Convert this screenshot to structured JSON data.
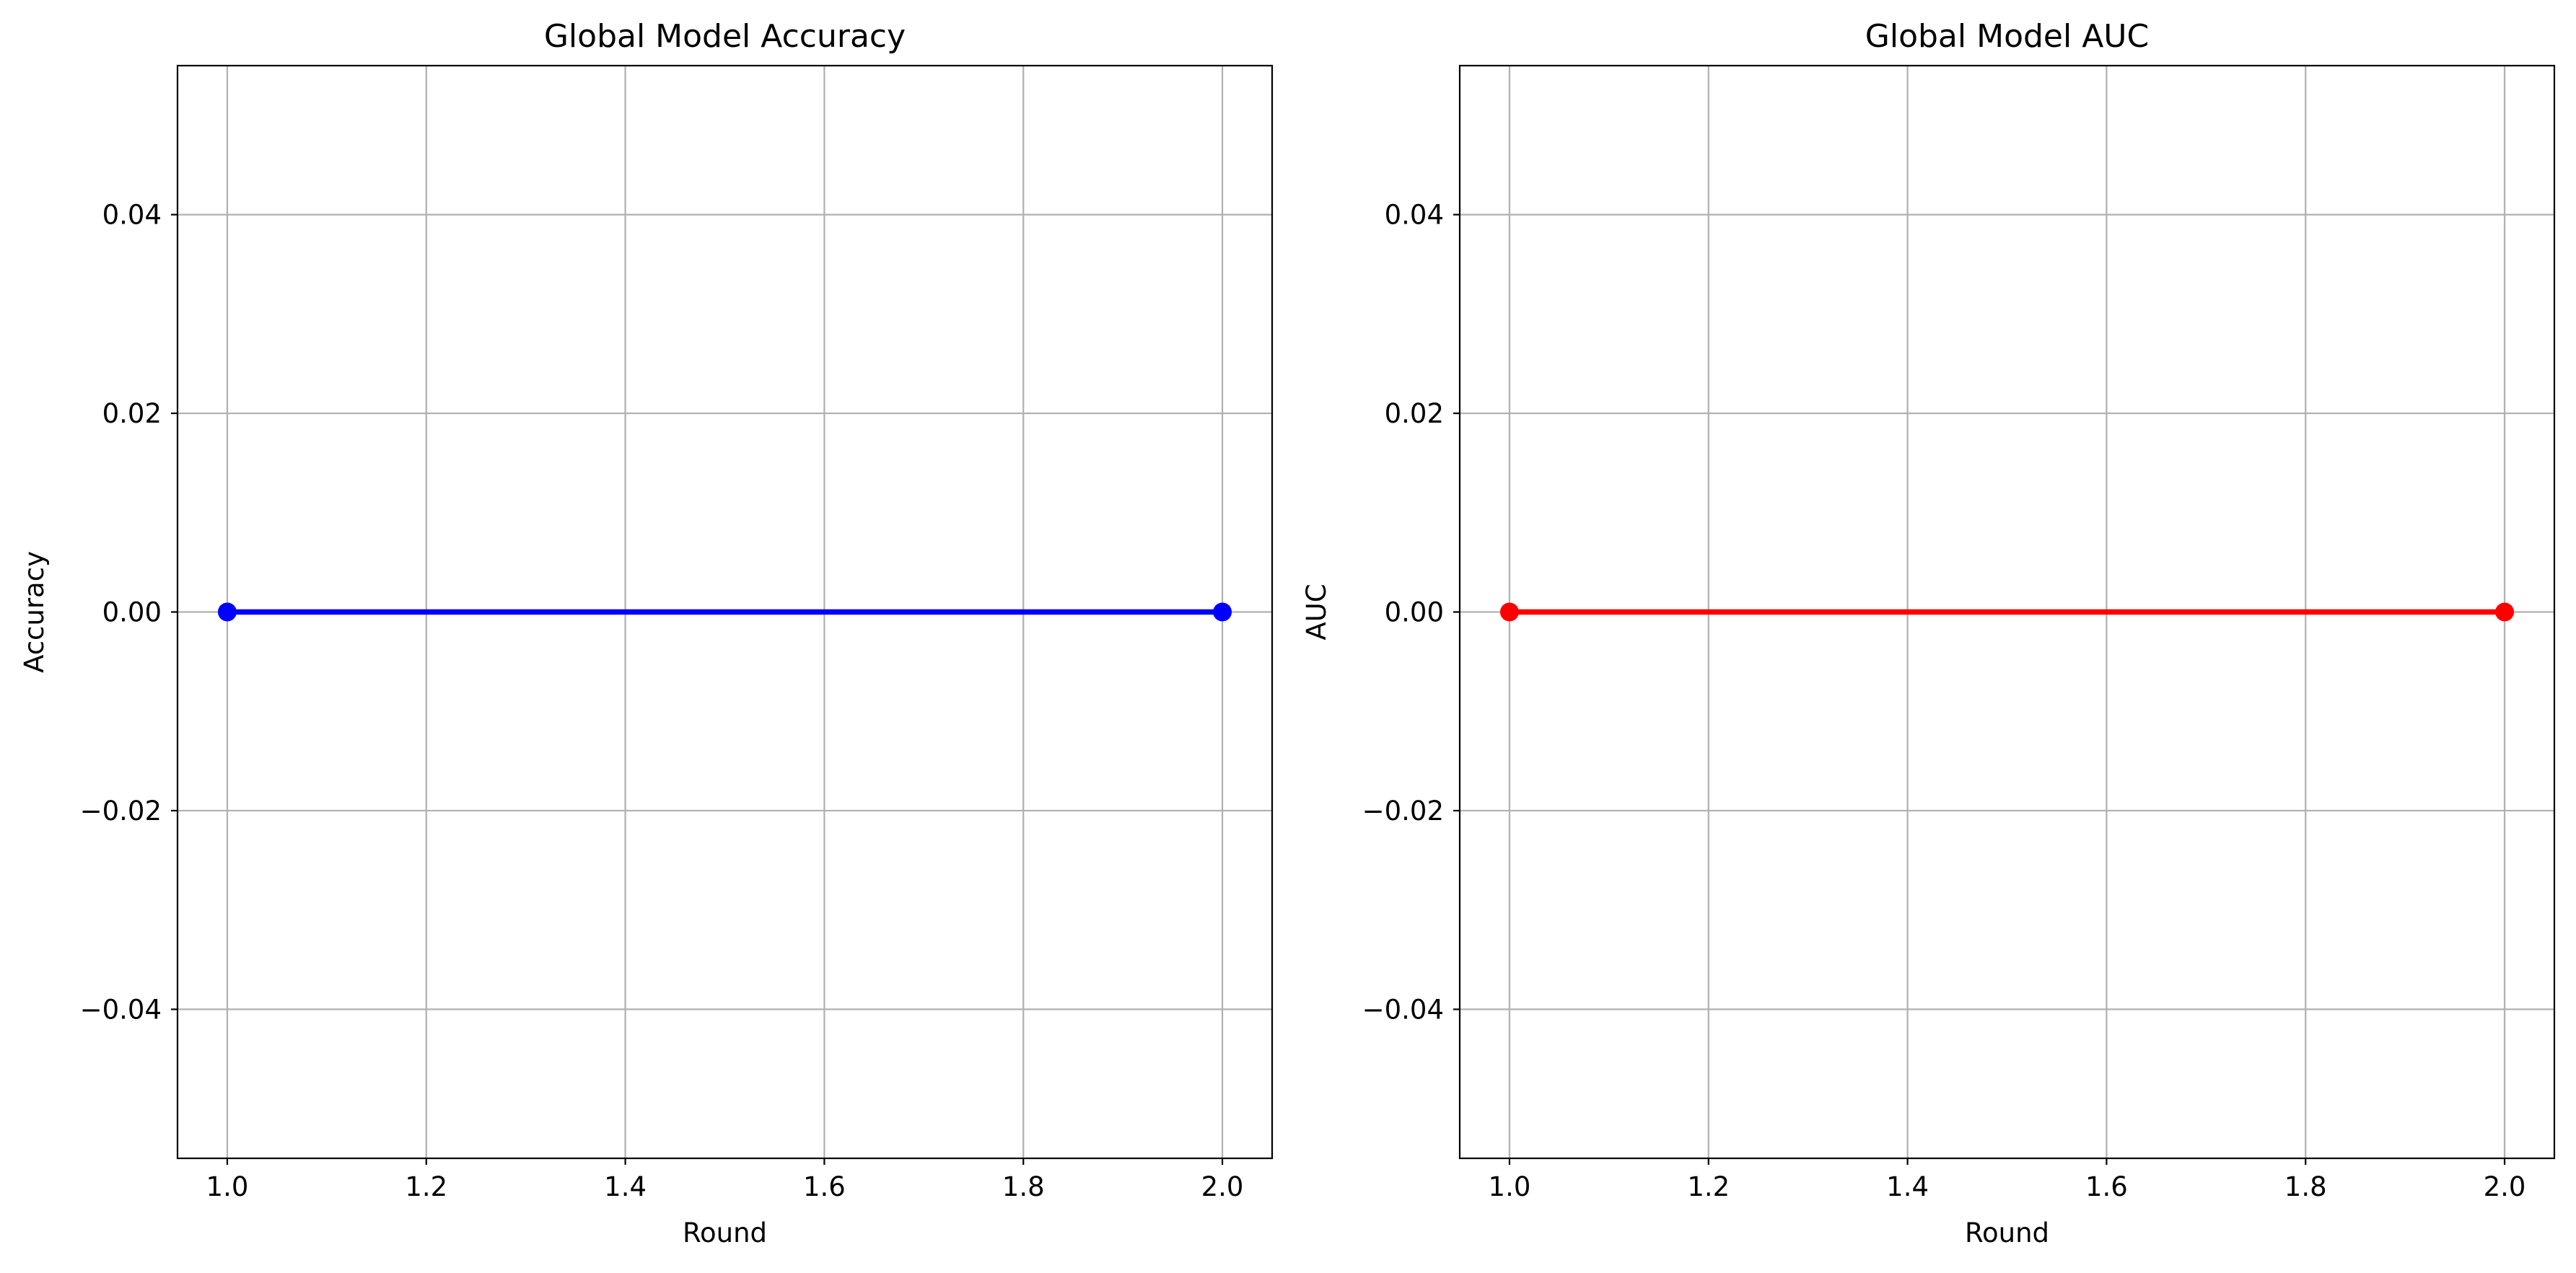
{
  "chart_data": [
    {
      "type": "line",
      "title": "Global Model Accuracy",
      "xlabel": "Round",
      "ylabel": "Accuracy",
      "xlim": [
        0.95,
        2.05
      ],
      "ylim": [
        -0.055,
        0.055
      ],
      "xticks": [
        1.0,
        1.2,
        1.4,
        1.6,
        1.8,
        2.0
      ],
      "xtick_labels": [
        "1.0",
        "1.2",
        "1.4",
        "1.6",
        "1.8",
        "2.0"
      ],
      "yticks": [
        -0.04,
        -0.02,
        0.0,
        0.02,
        0.04
      ],
      "ytick_labels": [
        "−0.04",
        "−0.02",
        "0.00",
        "0.02",
        "0.04"
      ],
      "grid": true,
      "color": "#0000ff",
      "marker": "circle",
      "series": [
        {
          "x": [
            1,
            2
          ],
          "values": [
            0.0,
            0.0
          ]
        }
      ]
    },
    {
      "type": "line",
      "title": "Global Model AUC",
      "xlabel": "Round",
      "ylabel": "AUC",
      "xlim": [
        0.95,
        2.05
      ],
      "ylim": [
        -0.055,
        0.055
      ],
      "xticks": [
        1.0,
        1.2,
        1.4,
        1.6,
        1.8,
        2.0
      ],
      "xtick_labels": [
        "1.0",
        "1.2",
        "1.4",
        "1.6",
        "1.8",
        "2.0"
      ],
      "yticks": [
        -0.04,
        -0.02,
        0.0,
        0.02,
        0.04
      ],
      "ytick_labels": [
        "−0.04",
        "−0.02",
        "0.00",
        "0.02",
        "0.04"
      ],
      "grid": true,
      "color": "#ff0000",
      "marker": "circle",
      "series": [
        {
          "x": [
            1,
            2
          ],
          "values": [
            0.0,
            0.0
          ]
        }
      ]
    }
  ]
}
